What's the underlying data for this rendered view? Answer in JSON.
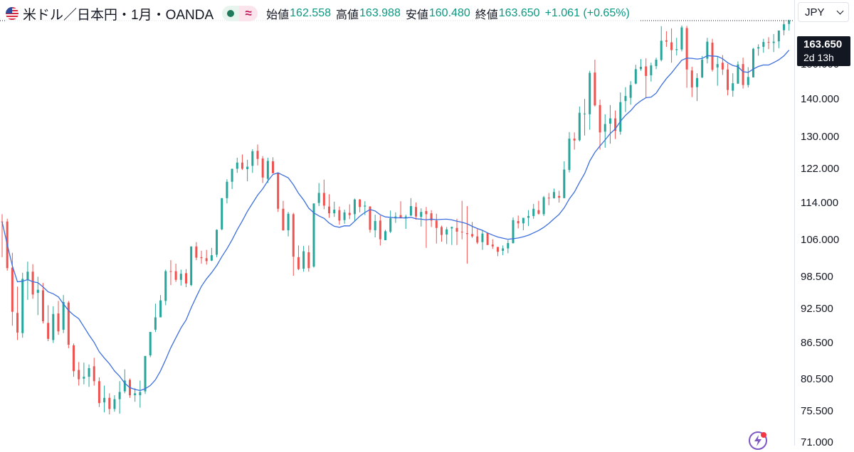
{
  "header": {
    "symbol": "米ドル／日本円・1月・OANDA",
    "open_label": "始値",
    "open": "162.558",
    "high_label": "高値",
    "high": "163.988",
    "low_label": "安値",
    "low": "160.480",
    "close_label": "終値",
    "close": "163.650",
    "change": "+1.061 (+0.65%)"
  },
  "currency_select": {
    "value": "JPY"
  },
  "price_tag": {
    "price": "163.650",
    "countdown": "2d 13h"
  },
  "colors": {
    "up": "#26a69a",
    "down": "#ef5350",
    "ma": "#3d6fde",
    "value_green": "#089981"
  },
  "icons": [
    "us-flag-icon",
    "status-dot-icon",
    "wave-icon",
    "chevron-down-icon",
    "lightning-icon"
  ],
  "chart_data": {
    "type": "candlestick",
    "title": "米ドル／日本円・1月・OANDA",
    "y_axis": {
      "scale": "log",
      "ticks": [
        "150.000",
        "140.000",
        "130.000",
        "122.000",
        "114.000",
        "106.000",
        "98.500",
        "92.500",
        "86.500",
        "80.500",
        "75.500",
        "71.000"
      ],
      "range": [
        70.6,
        170.5
      ]
    },
    "moving_average": {
      "type": "line",
      "color": "#3d6fde"
    },
    "candles": [
      [
        110.0,
        111.6,
        102.5,
        109.9
      ],
      [
        110.0,
        110.6,
        99.8,
        100.3
      ],
      [
        100.4,
        103.4,
        89.5,
        92.0
      ],
      [
        91.8,
        96.7,
        87.0,
        88.3
      ],
      [
        88.2,
        99.4,
        87.4,
        98.2
      ],
      [
        98.0,
        101.6,
        94.2,
        99.6
      ],
      [
        99.6,
        101.1,
        94.4,
        95.2
      ],
      [
        95.5,
        98.6,
        91.4,
        96.1
      ],
      [
        96.0,
        97.4,
        89.9,
        90.3
      ],
      [
        90.0,
        93.2,
        86.8,
        87.2
      ],
      [
        87.0,
        93.0,
        86.5,
        91.6
      ],
      [
        91.7,
        94.0,
        87.9,
        88.5
      ],
      [
        88.8,
        95.1,
        88.2,
        93.8
      ],
      [
        93.7,
        94.0,
        85.6,
        86.2
      ],
      [
        86.1,
        86.4,
        80.9,
        81.8
      ],
      [
        82.0,
        83.3,
        79.5,
        80.5
      ],
      [
        80.6,
        83.2,
        79.7,
        80.9
      ],
      [
        80.9,
        82.9,
        79.3,
        82.3
      ],
      [
        82.6,
        84.0,
        79.5,
        80.2
      ],
      [
        80.2,
        80.8,
        76.2,
        76.8
      ],
      [
        76.9,
        79.5,
        75.4,
        77.6
      ],
      [
        77.6,
        78.3,
        75.1,
        75.9
      ],
      [
        75.9,
        78.0,
        75.5,
        77.4
      ],
      [
        77.4,
        80.2,
        75.2,
        78.5
      ],
      [
        78.6,
        82.1,
        78.3,
        80.3
      ],
      [
        80.4,
        80.6,
        77.6,
        78.0
      ],
      [
        78.0,
        79.1,
        77.0,
        78.3
      ],
      [
        78.0,
        80.3,
        76.1,
        78.5
      ],
      [
        78.6,
        84.2,
        78.2,
        84.3
      ],
      [
        84.4,
        88.4,
        84.1,
        88.4
      ],
      [
        88.8,
        93.5,
        88.4,
        91.0
      ],
      [
        91.0,
        95.1,
        91.2,
        94.1
      ],
      [
        94.0,
        100.0,
        93.2,
        99.7
      ],
      [
        99.7,
        101.9,
        97.0,
        99.6
      ],
      [
        99.7,
        101.2,
        97.6,
        98.0
      ],
      [
        98.0,
        100.0,
        96.9,
        99.2
      ],
      [
        99.3,
        100.1,
        96.6,
        97.3
      ],
      [
        97.0,
        104.7,
        96.8,
        104.7
      ],
      [
        104.7,
        105.6,
        101.9,
        102.4
      ],
      [
        102.5,
        103.8,
        101.2,
        102.3
      ],
      [
        102.3,
        104.0,
        101.0,
        101.7
      ],
      [
        101.8,
        104.4,
        101.7,
        102.9
      ],
      [
        103.0,
        108.3,
        102.5,
        108.2
      ],
      [
        108.3,
        114.9,
        108.1,
        115.2
      ],
      [
        115.2,
        119.6,
        114.0,
        119.0
      ],
      [
        119.0,
        121.6,
        117.3,
        122.1
      ],
      [
        122.1,
        124.8,
        121.1,
        123.6
      ],
      [
        123.6,
        125.6,
        121.8,
        122.1
      ],
      [
        122.0,
        124.3,
        119.1,
        122.6
      ],
      [
        122.8,
        126.9,
        121.1,
        126.4
      ],
      [
        126.5,
        128.1,
        122.9,
        124.5
      ],
      [
        124.6,
        125.2,
        118.7,
        120.0
      ],
      [
        119.7,
        124.8,
        118.7,
        124.0
      ],
      [
        123.9,
        124.9,
        121.0,
        121.0
      ],
      [
        121.2,
        121.2,
        112.1,
        112.8
      ],
      [
        112.8,
        114.6,
        108.0,
        108.1
      ],
      [
        108.1,
        112.1,
        106.8,
        111.7
      ],
      [
        111.6,
        111.9,
        98.8,
        102.6
      ],
      [
        102.5,
        104.9,
        99.9,
        100.1
      ],
      [
        100.2,
        104.8,
        99.6,
        103.7
      ],
      [
        103.5,
        104.9,
        99.6,
        100.3
      ],
      [
        100.6,
        114.0,
        100.4,
        114.0
      ],
      [
        114.1,
        118.7,
        113.4,
        116.4
      ],
      [
        116.4,
        119.5,
        112.7,
        113.5
      ],
      [
        113.3,
        116.1,
        110.8,
        111.8
      ],
      [
        111.8,
        114.4,
        111.0,
        112.6
      ],
      [
        112.5,
        113.3,
        109.3,
        110.2
      ],
      [
        110.3,
        112.6,
        109.5,
        112.0
      ],
      [
        111.9,
        113.8,
        110.5,
        111.4
      ],
      [
        111.6,
        115.1,
        110.0,
        114.9
      ],
      [
        114.9,
        115.0,
        112.0,
        113.2
      ],
      [
        113.3,
        114.5,
        111.4,
        113.5
      ],
      [
        113.3,
        113.4,
        107.6,
        108.2
      ],
      [
        108.1,
        111.5,
        106.6,
        110.1
      ],
      [
        110.2,
        111.3,
        104.9,
        106.2
      ],
      [
        106.0,
        108.2,
        106.0,
        107.9
      ],
      [
        107.8,
        112.4,
        107.5,
        110.7
      ],
      [
        110.7,
        112.0,
        109.7,
        111.1
      ],
      [
        111.4,
        114.5,
        110.7,
        110.7
      ],
      [
        110.8,
        111.5,
        108.4,
        111.1
      ],
      [
        111.3,
        115.2,
        111.2,
        113.4
      ],
      [
        113.2,
        114.2,
        110.4,
        111.1
      ],
      [
        111.0,
        112.9,
        108.9,
        112.1
      ],
      [
        112.3,
        113.2,
        104.4,
        111.6
      ],
      [
        111.8,
        112.5,
        108.8,
        110.2
      ],
      [
        110.2,
        111.7,
        105.3,
        108.6
      ],
      [
        108.8,
        109.1,
        105.7,
        107.1
      ],
      [
        107.2,
        108.8,
        105.2,
        108.3
      ],
      [
        108.5,
        108.9,
        105.0,
        108.8
      ],
      [
        108.6,
        110.6,
        105.0,
        107.8
      ],
      [
        107.8,
        114.6,
        106.2,
        107.7
      ],
      [
        107.5,
        113.4,
        101.2,
        107.3
      ],
      [
        107.3,
        109.9,
        106.5,
        106.8
      ],
      [
        106.8,
        108.4,
        105.2,
        105.5
      ],
      [
        105.6,
        108.2,
        104.0,
        107.4
      ],
      [
        107.5,
        107.6,
        105.2,
        105.0
      ],
      [
        105.1,
        106.2,
        104.2,
        104.7
      ],
      [
        104.6,
        104.6,
        102.7,
        103.6
      ],
      [
        103.8,
        104.9,
        102.9,
        104.3
      ],
      [
        104.3,
        106.0,
        103.3,
        105.4
      ],
      [
        105.4,
        110.9,
        105.3,
        110.3
      ],
      [
        110.1,
        111.3,
        108.5,
        109.6
      ],
      [
        109.6,
        110.8,
        108.1,
        110.8
      ],
      [
        110.8,
        112.5,
        109.0,
        111.2
      ],
      [
        111.2,
        113.9,
        110.6,
        112.8
      ],
      [
        112.5,
        114.6,
        111.5,
        111.7
      ],
      [
        111.6,
        115.7,
        111.2,
        115.4
      ],
      [
        115.3,
        116.4,
        113.6,
        115.2
      ],
      [
        115.2,
        117.4,
        115.1,
        116.6
      ],
      [
        115.7,
        116.9,
        114.2,
        115.3
      ],
      [
        115.2,
        123.9,
        115.2,
        121.9
      ],
      [
        121.8,
        131.3,
        121.2,
        129.6
      ],
      [
        129.6,
        131.2,
        126.8,
        129.1
      ],
      [
        129.2,
        138.1,
        128.9,
        136.4
      ],
      [
        136.2,
        140.2,
        130.4,
        136.2
      ],
      [
        136.0,
        148.2,
        131.9,
        147.6
      ],
      [
        147.7,
        151.5,
        138.1,
        138.4
      ],
      [
        138.5,
        140.0,
        126.8,
        131.2
      ],
      [
        131.4,
        136.0,
        127.3,
        133.4
      ],
      [
        133.5,
        138.5,
        128.3,
        134.9
      ],
      [
        134.9,
        137.0,
        129.5,
        131.6
      ],
      [
        131.4,
        142.0,
        130.6,
        139.3
      ],
      [
        139.6,
        143.5,
        136.6,
        141.0
      ],
      [
        140.5,
        145.2,
        138.6,
        144.1
      ],
      [
        144.5,
        150.0,
        144.3,
        148.7
      ],
      [
        148.7,
        151.7,
        148.2,
        149.4
      ],
      [
        149.5,
        151.9,
        140.6,
        146.7
      ],
      [
        146.9,
        150.6,
        145.1,
        149.8
      ],
      [
        149.6,
        152.1,
        148.7,
        151.5
      ],
      [
        151.4,
        161.9,
        151.0,
        157.3
      ],
      [
        157.4,
        160.3,
        155.4,
        157.0
      ],
      [
        156.8,
        161.2,
        150.6,
        154.4
      ],
      [
        154.4,
        158.2,
        152.8,
        154.7
      ],
      [
        154.6,
        162.1,
        154.0,
        161.5
      ],
      [
        161.3,
        162.0,
        143.3,
        148.6
      ],
      [
        148.3,
        149.4,
        140.7,
        143.4
      ],
      [
        143.5,
        147.5,
        139.6,
        146.1
      ],
      [
        146.3,
        152.6,
        146.1,
        151.5
      ],
      [
        151.8,
        158.2,
        150.4,
        157.0
      ],
      [
        156.7,
        157.9,
        148.0,
        148.5
      ],
      [
        149.2,
        152.6,
        143.9,
        150.2
      ],
      [
        150.6,
        152.9,
        147.0,
        148.6
      ],
      [
        148.6,
        150.3,
        141.2,
        142.7
      ],
      [
        142.5,
        147.5,
        140.8,
        144.6
      ],
      [
        144.5,
        151.0,
        144.4,
        150.1
      ],
      [
        150.2,
        152.1,
        143.1,
        144.1
      ],
      [
        144.1,
        149.3,
        143.4,
        146.4
      ],
      [
        146.3,
        155.1,
        146.7,
        154.8
      ],
      [
        154.9,
        156.2,
        152.7,
        155.3
      ],
      [
        155.4,
        157.9,
        153.6,
        156.9
      ],
      [
        156.9,
        158.4,
        154.7,
        156.8
      ],
      [
        156.6,
        159.4,
        153.8,
        157.0
      ],
      [
        157.1,
        160.5,
        155.0,
        160.5
      ],
      [
        160.6,
        163.9,
        159.0,
        162.5
      ],
      [
        162.6,
        164.0,
        160.5,
        163.7
      ]
    ]
  }
}
